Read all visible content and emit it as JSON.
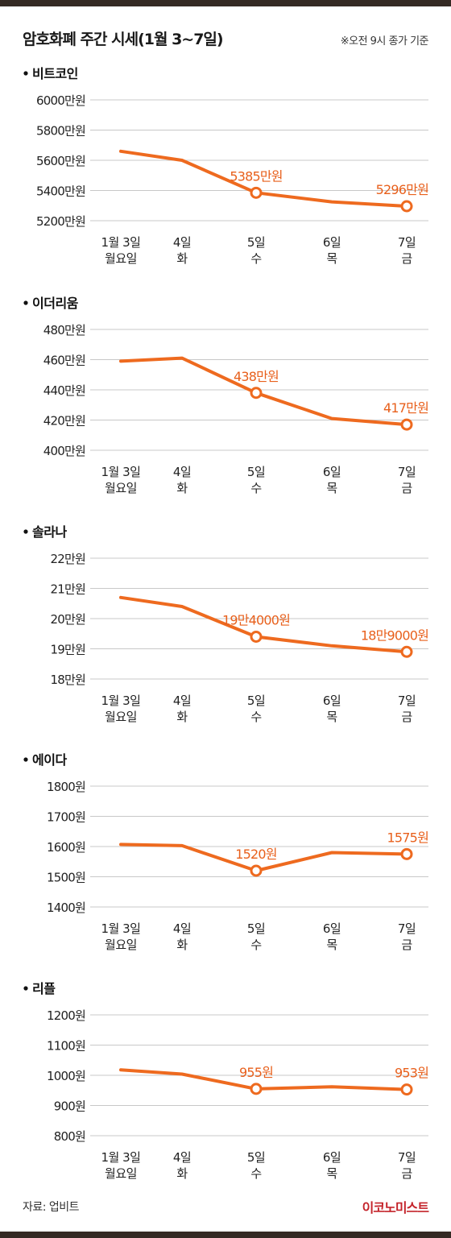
{
  "header": {
    "title": "암호화폐 주간 시세(1월 3~7일)",
    "note": "※오전 9시 종가 기준"
  },
  "footer": {
    "source": "자료: 업비트",
    "brand": "이코노미스트"
  },
  "colors": {
    "line": "#ee6a1f",
    "label": "#e8601c",
    "grid": "#c8c8c8",
    "text": "#222222",
    "bar": "#352a24"
  },
  "chart_data": [
    {
      "type": "line",
      "title": "비트코인",
      "x": [
        "1월 3일\n월요일",
        "4일\n화",
        "5일\n수",
        "6일\n목",
        "7일\n금"
      ],
      "values": [
        5660,
        5600,
        5385,
        5325,
        5296
      ],
      "ylim": [
        5200,
        6000
      ],
      "yticks": [
        6000,
        5800,
        5600,
        5400,
        5200
      ],
      "ytick_labels": [
        "6000만원",
        "5800만원",
        "5600만원",
        "5400만원",
        "5200만원"
      ],
      "annotations": [
        {
          "index": 2,
          "label": "5385만원"
        },
        {
          "index": 4,
          "label": "5296만원"
        }
      ],
      "grid": true
    },
    {
      "type": "line",
      "title": "이더리움",
      "x": [
        "1월 3일\n월요일",
        "4일\n화",
        "5일\n수",
        "6일\n목",
        "7일\n금"
      ],
      "values": [
        459,
        461,
        438,
        421,
        417
      ],
      "ylim": [
        400,
        480
      ],
      "yticks": [
        480,
        460,
        440,
        420,
        400
      ],
      "ytick_labels": [
        "480만원",
        "460만원",
        "440만원",
        "420만원",
        "400만원"
      ],
      "annotations": [
        {
          "index": 2,
          "label": "438만원"
        },
        {
          "index": 4,
          "label": "417만원"
        }
      ],
      "grid": true
    },
    {
      "type": "line",
      "title": "솔라나",
      "x": [
        "1월 3일\n월요일",
        "4일\n화",
        "5일\n수",
        "6일\n목",
        "7일\n금"
      ],
      "values": [
        207000,
        204000,
        194000,
        191000,
        189000
      ],
      "ylim": [
        180000,
        220000
      ],
      "yticks": [
        220000,
        210000,
        200000,
        190000,
        180000
      ],
      "ytick_labels": [
        "22만원",
        "21만원",
        "20만원",
        "19만원",
        "18만원"
      ],
      "annotations": [
        {
          "index": 2,
          "label": "19만4000원"
        },
        {
          "index": 4,
          "label": "18만9000원"
        }
      ],
      "grid": true
    },
    {
      "type": "line",
      "title": "에이다",
      "x": [
        "1월 3일\n월요일",
        "4일\n화",
        "5일\n수",
        "6일\n목",
        "7일\n금"
      ],
      "values": [
        1607,
        1603,
        1520,
        1580,
        1575
      ],
      "ylim": [
        1400,
        1800
      ],
      "yticks": [
        1800,
        1700,
        1600,
        1500,
        1400
      ],
      "ytick_labels": [
        "1800원",
        "1700원",
        "1600원",
        "1500원",
        "1400원"
      ],
      "annotations": [
        {
          "index": 2,
          "label": "1520원"
        },
        {
          "index": 4,
          "label": "1575원"
        }
      ],
      "grid": true
    },
    {
      "type": "line",
      "title": "리플",
      "x": [
        "1월 3일\n월요일",
        "4일\n화",
        "5일\n수",
        "6일\n목",
        "7일\n금"
      ],
      "values": [
        1018,
        1004,
        955,
        962,
        953
      ],
      "ylim": [
        800,
        1200
      ],
      "yticks": [
        1200,
        1100,
        1000,
        900,
        800
      ],
      "ytick_labels": [
        "1200원",
        "1100원",
        "1000원",
        "900원",
        "800원"
      ],
      "annotations": [
        {
          "index": 2,
          "label": "955원"
        },
        {
          "index": 4,
          "label": "953원"
        }
      ],
      "grid": true
    }
  ]
}
